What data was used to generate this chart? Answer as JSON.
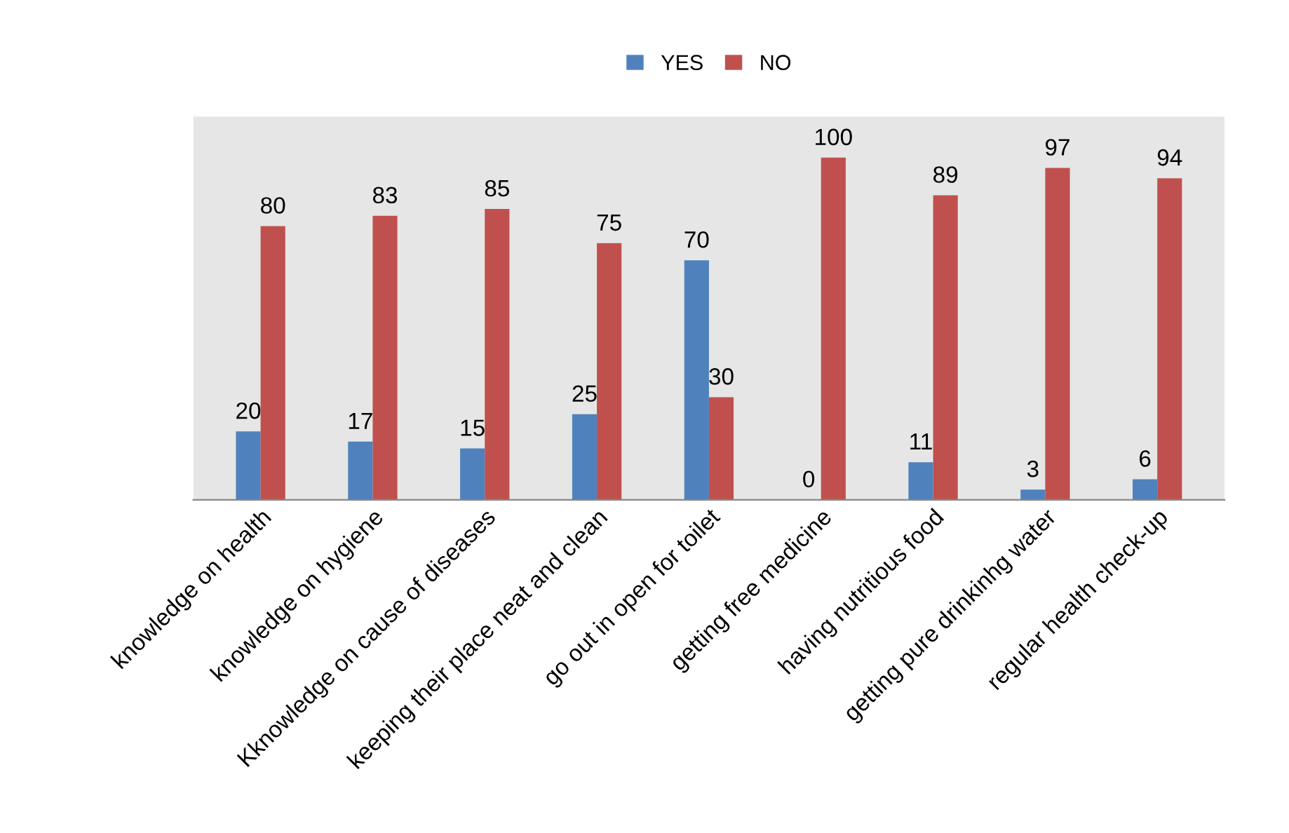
{
  "chart_data": {
    "type": "bar",
    "categories": [
      "knowledge on health",
      "knowledge on hygiene",
      "Kknowledge on cause of diseases",
      "keeping their place neat and clean",
      "go out in open for toilet",
      "getting free medicine",
      "having nutritious food",
      "getting pure drinkinhg water",
      "regular health check-up"
    ],
    "series": [
      {
        "name": "YES",
        "color": "#4f81bd",
        "values": [
          20,
          17,
          15,
          25,
          70,
          0,
          11,
          3,
          6
        ]
      },
      {
        "name": "NO",
        "color": "#c0504d",
        "values": [
          80,
          83,
          85,
          75,
          30,
          100,
          89,
          97,
          94
        ]
      }
    ],
    "data_labels": true,
    "legend": "top",
    "grid": false
  }
}
